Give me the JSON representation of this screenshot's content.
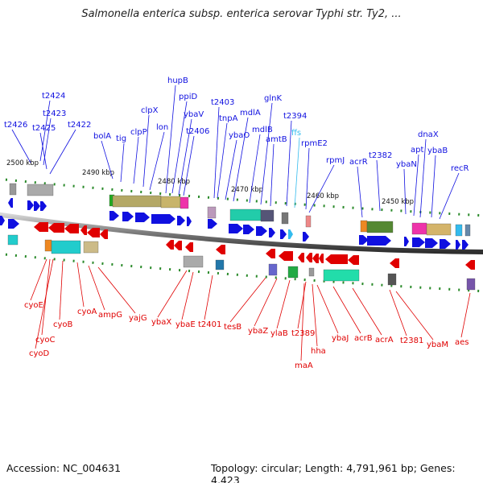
{
  "title": "Salmonella enterica subsp. enterica serovar Typhi str. Ty2, ...",
  "footer": {
    "accession": "Accession: NC_004631",
    "topology": "Topology: circular; Length: 4,791,961 bp; Genes: 4,423"
  },
  "colors": {
    "forward_gene": "#1010e0",
    "reverse_gene": "#e00000",
    "rna_gene": "#33bbee",
    "grid": "#2a8a2a"
  },
  "ticks": [
    "2500 kbp",
    "2490 kbp",
    "2480 kbp",
    "2470 kbp",
    "2460 kbp",
    "2450 kbp"
  ],
  "top_labels": [
    "t2426",
    "t2424",
    "t2423",
    "t2425",
    "t2422",
    "bolA",
    "tig",
    "clpP",
    "clpX",
    "lon",
    "hupB",
    "ppiD",
    "ybaV",
    "t2406",
    "t2403",
    "tnpA",
    "ybaO",
    "mdlA",
    "mdlB",
    "glnK",
    "amtB",
    "t2394",
    "ffs",
    "rpmE2",
    "rpmJ",
    "acrR",
    "t2382",
    "ybaN",
    "apt",
    "dnaX",
    "ybaB",
    "recR"
  ],
  "bottom_labels": [
    "cyoE",
    "cyoC",
    "cyoD",
    "cyoB",
    "cyoA",
    "ampG",
    "yajG",
    "ybaX",
    "ybaE",
    "t2401",
    "tesB",
    "ybaZ",
    "ylaB",
    "t2389",
    "maA",
    "hha",
    "ybaJ",
    "acrB",
    "acrA",
    "t2381",
    "ybaM",
    "aes"
  ]
}
